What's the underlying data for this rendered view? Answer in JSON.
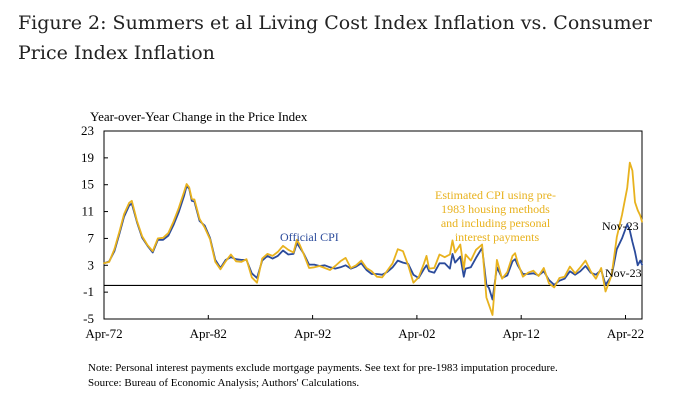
{
  "figure": {
    "title": "Figure 2: Summers et al Living Cost Index Inflation vs. Consumer Price Index Inflation"
  },
  "notes": {
    "line1": "Note: Personal interest payments exclude mortgage payments. See text for pre-1983 imputation procedure.",
    "line2": "Source: Bureau of Economic Analysis; Authors' Calculations."
  },
  "colors": {
    "official_cpi": "#2b4b9b",
    "estimated_cpi": "#e8b21e",
    "zero_line": "#000000"
  },
  "chart_data": {
    "type": "line",
    "ylabel": "Year-over-Year Change in the Price Index",
    "ylim": [
      -5,
      23
    ],
    "yticks": [
      23,
      19,
      15,
      11,
      7,
      3,
      -1,
      -5
    ],
    "xlim": [
      "1972-04",
      "2023-11"
    ],
    "xticks": [
      {
        "label": "Apr-72",
        "date": "1972-04"
      },
      {
        "label": "Apr-82",
        "date": "1982-04"
      },
      {
        "label": "Apr-92",
        "date": "1992-04"
      },
      {
        "label": "Apr-02",
        "date": "2002-04"
      },
      {
        "label": "Apr-12",
        "date": "2012-04"
      },
      {
        "label": "Apr-22",
        "date": "2022-04"
      }
    ],
    "grid": false,
    "annotations": [
      {
        "text": "Official CPI",
        "series": "Official CPI"
      },
      {
        "text": "Estimated CPI using pre-1983 housing methods and including personal interest payments",
        "lines": [
          "Estimated CPI using pre-",
          "1983 housing methods",
          "and including personal",
          "interest payments"
        ],
        "series": "Estimated CPI"
      },
      {
        "text": "Nov-23",
        "series": "Estimated CPI",
        "value": 9.5
      },
      {
        "text": "Nov-23",
        "series": "Official CPI",
        "value": 3.1
      }
    ],
    "series": [
      {
        "name": "Official CPI",
        "color": "#2b4b9b",
        "points": [
          [
            "1972-04",
            3.3
          ],
          [
            "1972-10",
            3.6
          ],
          [
            "1973-04",
            5.1
          ],
          [
            "1973-10",
            7.8
          ],
          [
            "1974-03",
            10.2
          ],
          [
            "1974-09",
            11.9
          ],
          [
            "1974-12",
            12.2
          ],
          [
            "1975-06",
            9.4
          ],
          [
            "1975-12",
            7.1
          ],
          [
            "1976-06",
            5.9
          ],
          [
            "1976-12",
            4.9
          ],
          [
            "1977-06",
            6.8
          ],
          [
            "1977-12",
            6.8
          ],
          [
            "1978-06",
            7.4
          ],
          [
            "1978-12",
            9.0
          ],
          [
            "1979-06",
            10.9
          ],
          [
            "1979-12",
            13.3
          ],
          [
            "1980-03",
            14.8
          ],
          [
            "1980-06",
            14.4
          ],
          [
            "1980-09",
            12.6
          ],
          [
            "1980-12",
            12.5
          ],
          [
            "1981-06",
            9.6
          ],
          [
            "1981-12",
            8.9
          ],
          [
            "1982-06",
            7.1
          ],
          [
            "1982-12",
            3.8
          ],
          [
            "1983-06",
            2.6
          ],
          [
            "1983-12",
            3.8
          ],
          [
            "1984-06",
            4.2
          ],
          [
            "1984-12",
            3.9
          ],
          [
            "1985-06",
            3.8
          ],
          [
            "1985-12",
            3.8
          ],
          [
            "1986-06",
            1.8
          ],
          [
            "1986-12",
            1.1
          ],
          [
            "1987-06",
            3.7
          ],
          [
            "1987-12",
            4.4
          ],
          [
            "1988-06",
            4.0
          ],
          [
            "1988-12",
            4.4
          ],
          [
            "1989-06",
            5.2
          ],
          [
            "1989-12",
            4.6
          ],
          [
            "1990-06",
            4.7
          ],
          [
            "1990-10",
            6.3
          ],
          [
            "1991-01",
            5.7
          ],
          [
            "1991-06",
            4.7
          ],
          [
            "1991-12",
            3.1
          ],
          [
            "1992-06",
            3.1
          ],
          [
            "1992-12",
            2.9
          ],
          [
            "1993-06",
            3.0
          ],
          [
            "1993-12",
            2.7
          ],
          [
            "1994-06",
            2.5
          ],
          [
            "1994-12",
            2.7
          ],
          [
            "1995-06",
            3.0
          ],
          [
            "1995-12",
            2.5
          ],
          [
            "1996-06",
            2.8
          ],
          [
            "1996-12",
            3.3
          ],
          [
            "1997-06",
            2.3
          ],
          [
            "1997-12",
            1.7
          ],
          [
            "1998-06",
            1.7
          ],
          [
            "1998-12",
            1.6
          ],
          [
            "1999-06",
            2.0
          ],
          [
            "1999-12",
            2.7
          ],
          [
            "2000-06",
            3.7
          ],
          [
            "2000-12",
            3.4
          ],
          [
            "2001-06",
            3.2
          ],
          [
            "2001-12",
            1.6
          ],
          [
            "2002-06",
            1.1
          ],
          [
            "2002-12",
            2.4
          ],
          [
            "2003-03",
            3.0
          ],
          [
            "2003-06",
            2.1
          ],
          [
            "2003-12",
            1.9
          ],
          [
            "2004-06",
            3.3
          ],
          [
            "2004-12",
            3.3
          ],
          [
            "2005-06",
            2.5
          ],
          [
            "2005-09",
            4.7
          ],
          [
            "2005-12",
            3.4
          ],
          [
            "2006-06",
            4.3
          ],
          [
            "2006-10",
            1.3
          ],
          [
            "2006-12",
            2.5
          ],
          [
            "2007-06",
            2.7
          ],
          [
            "2007-12",
            4.1
          ],
          [
            "2008-07",
            5.6
          ],
          [
            "2008-12",
            0.1
          ],
          [
            "2009-03",
            -0.4
          ],
          [
            "2009-07",
            -2.1
          ],
          [
            "2009-12",
            2.7
          ],
          [
            "2010-06",
            1.1
          ],
          [
            "2010-12",
            1.5
          ],
          [
            "2011-06",
            3.6
          ],
          [
            "2011-09",
            3.9
          ],
          [
            "2011-12",
            3.0
          ],
          [
            "2012-06",
            1.7
          ],
          [
            "2012-12",
            1.7
          ],
          [
            "2013-06",
            1.8
          ],
          [
            "2013-12",
            1.5
          ],
          [
            "2014-06",
            2.1
          ],
          [
            "2014-12",
            0.8
          ],
          [
            "2015-06",
            0.1
          ],
          [
            "2015-12",
            0.7
          ],
          [
            "2016-06",
            1.0
          ],
          [
            "2016-12",
            2.1
          ],
          [
            "2017-06",
            1.6
          ],
          [
            "2017-12",
            2.1
          ],
          [
            "2018-06",
            2.9
          ],
          [
            "2018-12",
            1.9
          ],
          [
            "2019-06",
            1.6
          ],
          [
            "2019-12",
            2.3
          ],
          [
            "2020-05",
            0.1
          ],
          [
            "2020-12",
            1.4
          ],
          [
            "2021-06",
            5.4
          ],
          [
            "2021-12",
            7.0
          ],
          [
            "2022-06",
            9.1
          ],
          [
            "2022-09",
            8.2
          ],
          [
            "2022-12",
            6.5
          ],
          [
            "2023-03",
            5.0
          ],
          [
            "2023-06",
            3.0
          ],
          [
            "2023-09",
            3.7
          ],
          [
            "2023-11",
            3.1
          ]
        ]
      },
      {
        "name": "Estimated CPI",
        "color": "#e8b21e",
        "points": [
          [
            "1972-04",
            3.3
          ],
          [
            "1972-10",
            3.5
          ],
          [
            "1973-04",
            5.4
          ],
          [
            "1973-10",
            8.1
          ],
          [
            "1974-03",
            10.6
          ],
          [
            "1974-09",
            12.3
          ],
          [
            "1974-12",
            12.6
          ],
          [
            "1975-06",
            9.6
          ],
          [
            "1975-12",
            7.3
          ],
          [
            "1976-06",
            6.0
          ],
          [
            "1976-12",
            5.1
          ],
          [
            "1977-06",
            7.0
          ],
          [
            "1977-12",
            7.1
          ],
          [
            "1978-06",
            7.8
          ],
          [
            "1978-12",
            9.5
          ],
          [
            "1979-06",
            11.5
          ],
          [
            "1979-12",
            13.9
          ],
          [
            "1980-03",
            15.1
          ],
          [
            "1980-06",
            14.6
          ],
          [
            "1980-09",
            12.9
          ],
          [
            "1980-12",
            12.8
          ],
          [
            "1981-06",
            9.9
          ],
          [
            "1981-12",
            8.6
          ],
          [
            "1982-06",
            6.9
          ],
          [
            "1982-12",
            3.5
          ],
          [
            "1983-06",
            2.4
          ],
          [
            "1983-12",
            3.6
          ],
          [
            "1984-06",
            4.6
          ],
          [
            "1984-12",
            3.6
          ],
          [
            "1985-06",
            3.5
          ],
          [
            "1985-12",
            3.9
          ],
          [
            "1986-06",
            1.2
          ],
          [
            "1986-12",
            0.4
          ],
          [
            "1987-06",
            4.0
          ],
          [
            "1987-12",
            4.7
          ],
          [
            "1988-06",
            4.4
          ],
          [
            "1988-12",
            5.0
          ],
          [
            "1989-06",
            5.9
          ],
          [
            "1989-12",
            5.3
          ],
          [
            "1990-06",
            4.9
          ],
          [
            "1990-10",
            6.8
          ],
          [
            "1991-01",
            6.1
          ],
          [
            "1991-06",
            4.6
          ],
          [
            "1991-12",
            2.6
          ],
          [
            "1992-06",
            2.7
          ],
          [
            "1992-12",
            2.9
          ],
          [
            "1993-06",
            2.6
          ],
          [
            "1993-12",
            2.3
          ],
          [
            "1994-06",
            2.9
          ],
          [
            "1994-12",
            3.6
          ],
          [
            "1995-06",
            4.1
          ],
          [
            "1995-12",
            2.6
          ],
          [
            "1996-06",
            3.0
          ],
          [
            "1996-12",
            3.7
          ],
          [
            "1997-06",
            2.6
          ],
          [
            "1997-12",
            2.1
          ],
          [
            "1998-06",
            1.3
          ],
          [
            "1998-12",
            1.2
          ],
          [
            "1999-06",
            2.2
          ],
          [
            "1999-12",
            3.3
          ],
          [
            "2000-06",
            5.4
          ],
          [
            "2000-12",
            5.1
          ],
          [
            "2001-06",
            3.0
          ],
          [
            "2001-12",
            0.4
          ],
          [
            "2002-06",
            1.2
          ],
          [
            "2002-12",
            3.2
          ],
          [
            "2003-03",
            4.4
          ],
          [
            "2003-06",
            2.5
          ],
          [
            "2003-12",
            2.6
          ],
          [
            "2004-06",
            4.6
          ],
          [
            "2004-12",
            4.2
          ],
          [
            "2005-06",
            4.6
          ],
          [
            "2005-09",
            6.7
          ],
          [
            "2005-12",
            4.9
          ],
          [
            "2006-06",
            6.1
          ],
          [
            "2006-10",
            2.4
          ],
          [
            "2006-12",
            4.6
          ],
          [
            "2007-06",
            3.7
          ],
          [
            "2007-12",
            5.3
          ],
          [
            "2008-07",
            6.1
          ],
          [
            "2008-12",
            -1.8
          ],
          [
            "2009-03",
            -2.9
          ],
          [
            "2009-07",
            -4.4
          ],
          [
            "2009-12",
            3.8
          ],
          [
            "2010-06",
            1.0
          ],
          [
            "2010-12",
            2.0
          ],
          [
            "2011-06",
            4.4
          ],
          [
            "2011-09",
            4.8
          ],
          [
            "2011-12",
            3.4
          ],
          [
            "2012-06",
            1.3
          ],
          [
            "2012-12",
            1.9
          ],
          [
            "2013-06",
            2.2
          ],
          [
            "2013-12",
            1.4
          ],
          [
            "2014-06",
            2.6
          ],
          [
            "2014-12",
            0.3
          ],
          [
            "2015-06",
            -0.3
          ],
          [
            "2015-12",
            1.1
          ],
          [
            "2016-06",
            1.3
          ],
          [
            "2016-12",
            2.8
          ],
          [
            "2017-06",
            1.8
          ],
          [
            "2017-12",
            2.7
          ],
          [
            "2018-06",
            3.7
          ],
          [
            "2018-12",
            2.1
          ],
          [
            "2019-06",
            1.0
          ],
          [
            "2019-12",
            2.6
          ],
          [
            "2020-05",
            -0.9
          ],
          [
            "2020-12",
            1.5
          ],
          [
            "2021-06",
            7.2
          ],
          [
            "2021-12",
            10.5
          ],
          [
            "2022-06",
            14.5
          ],
          [
            "2022-09",
            18.3
          ],
          [
            "2022-12",
            17.1
          ],
          [
            "2023-03",
            12.4
          ],
          [
            "2023-06",
            11.2
          ],
          [
            "2023-09",
            10.4
          ],
          [
            "2023-11",
            9.5
          ]
        ]
      }
    ]
  }
}
